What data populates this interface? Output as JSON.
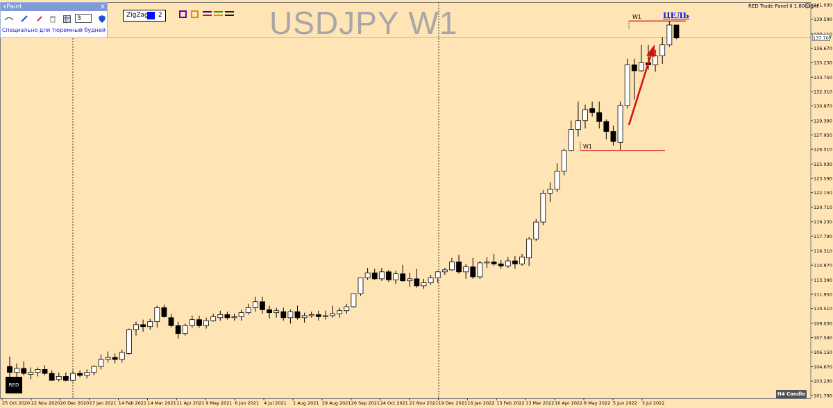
{
  "window": {
    "symbol_title": "USDJPY W1",
    "panel_label": "RED Trade Panel II 1.80 Light"
  },
  "xpaint": {
    "title": "xPaint",
    "close_label": "x",
    "line_width": "3",
    "subtitle": "Специально для тюремный будней"
  },
  "zigzag": {
    "label": "ZigZag",
    "depth": "2",
    "color": "#0011ff"
  },
  "annotations": {
    "target_label": "ЦЕЛЬ",
    "high_label": "W1",
    "low_label": "W1",
    "arrow_color": "#d91010",
    "level_line_color": "#d91010"
  },
  "bottom": {
    "corner_label": "RED",
    "timeframe_badge": "H4 Candle"
  },
  "current_price": "137.707",
  "colors": {
    "background": "#ffe4b5",
    "bull": "#ffffff",
    "bear": "#000000"
  },
  "chart_data": {
    "type": "candlestick",
    "title": "USDJPY W1",
    "y_ticks": [
      "141.030",
      "139.590",
      "138.110",
      "136.670",
      "135.230",
      "133.750",
      "132.310",
      "130.870",
      "129.390",
      "127.950",
      "126.510",
      "125.030",
      "123.590",
      "122.150",
      "120.710",
      "119.230",
      "117.790",
      "116.310",
      "114.870",
      "113.390",
      "111.950",
      "110.510",
      "109.030",
      "107.590",
      "106.150",
      "104.670",
      "103.230",
      "101.790"
    ],
    "x_ticks": [
      "25 Oct 2020",
      "22 Nov 2020",
      "20 Dec 2020",
      "17 Jan 2021",
      "14 Feb 2021",
      "14 Mar 2021",
      "11 Apr 2021",
      "9 May 2021",
      "6 Jun 2021",
      "4 Jul 2021",
      "1 Aug 2021",
      "29 Aug 2021",
      "26 Sep 2021",
      "24 Oct 2021",
      "21 Nov 2021",
      "19 Dec 2021",
      "16 Jan 2022",
      "13 Feb 2022",
      "13 Mar 2022",
      "10 Apr 2022",
      "8 May 2022",
      "5 Jun 2022",
      "3 Jul 2022"
    ],
    "ylim": [
      101.5,
      141.3
    ],
    "candles_ohlc": [
      [
        104.7,
        105.7,
        103.4,
        104.1
      ],
      [
        104.1,
        105.0,
        103.6,
        104.5
      ],
      [
        104.5,
        105.2,
        103.8,
        104.0
      ],
      [
        103.9,
        104.6,
        103.4,
        104.1
      ],
      [
        104.1,
        104.6,
        103.7,
        104.4
      ],
      [
        104.4,
        104.8,
        103.8,
        104.0
      ],
      [
        104.0,
        104.3,
        103.3,
        103.3
      ],
      [
        103.4,
        104.1,
        103.2,
        103.7
      ],
      [
        103.7,
        104.1,
        103.2,
        103.3
      ],
      [
        103.3,
        104.3,
        103.2,
        104.0
      ],
      [
        104.0,
        104.3,
        103.6,
        103.8
      ],
      [
        103.8,
        104.4,
        103.5,
        104.1
      ],
      [
        104.1,
        104.8,
        103.8,
        104.7
      ],
      [
        104.7,
        105.9,
        104.4,
        105.4
      ],
      [
        105.4,
        106.2,
        105.1,
        105.6
      ],
      [
        105.6,
        106.0,
        105.0,
        105.4
      ],
      [
        105.4,
        106.4,
        105.1,
        106.1
      ],
      [
        106.0,
        108.5,
        105.9,
        108.4
      ],
      [
        108.4,
        109.2,
        107.8,
        108.9
      ],
      [
        108.9,
        109.4,
        108.2,
        108.7
      ],
      [
        108.7,
        109.5,
        108.4,
        109.2
      ],
      [
        109.2,
        110.8,
        108.6,
        110.6
      ],
      [
        110.6,
        110.9,
        109.6,
        109.7
      ],
      [
        109.6,
        110.0,
        108.6,
        108.8
      ],
      [
        108.8,
        109.2,
        107.5,
        108.0
      ],
      [
        108.0,
        109.0,
        107.8,
        108.8
      ],
      [
        108.8,
        109.8,
        108.6,
        109.4
      ],
      [
        109.4,
        109.8,
        108.6,
        108.8
      ],
      [
        108.8,
        109.6,
        108.5,
        109.3
      ],
      [
        109.3,
        110.0,
        109.2,
        109.7
      ],
      [
        109.6,
        110.3,
        109.3,
        109.9
      ],
      [
        109.9,
        110.2,
        109.4,
        109.6
      ],
      [
        109.6,
        110.0,
        109.3,
        109.7
      ],
      [
        109.7,
        110.4,
        109.3,
        110.1
      ],
      [
        110.1,
        111.0,
        109.9,
        110.6
      ],
      [
        110.6,
        111.7,
        110.2,
        111.2
      ],
      [
        111.2,
        111.7,
        110.0,
        110.4
      ],
      [
        110.4,
        110.8,
        109.5,
        110.1
      ],
      [
        110.1,
        110.6,
        109.6,
        110.3
      ],
      [
        110.2,
        110.6,
        109.3,
        109.6
      ],
      [
        109.6,
        110.4,
        109.0,
        110.2
      ],
      [
        110.2,
        110.8,
        109.4,
        109.6
      ],
      [
        109.6,
        110.1,
        109.1,
        109.8
      ],
      [
        109.8,
        110.2,
        109.6,
        109.9
      ],
      [
        109.9,
        110.3,
        109.3,
        109.7
      ],
      [
        109.7,
        110.3,
        109.4,
        109.8
      ],
      [
        109.8,
        110.8,
        109.6,
        110.0
      ],
      [
        110.0,
        110.6,
        109.6,
        110.3
      ],
      [
        110.3,
        111.0,
        110.0,
        110.7
      ],
      [
        110.7,
        112.0,
        110.6,
        112.0
      ],
      [
        112.0,
        113.6,
        111.8,
        113.6
      ],
      [
        113.6,
        114.6,
        113.4,
        114.1
      ],
      [
        114.1,
        114.5,
        113.4,
        113.5
      ],
      [
        113.5,
        114.6,
        113.3,
        114.2
      ],
      [
        114.2,
        114.4,
        113.2,
        113.4
      ],
      [
        113.4,
        114.3,
        113.0,
        114.0
      ],
      [
        114.0,
        114.9,
        113.2,
        113.3
      ],
      [
        113.3,
        114.1,
        112.7,
        113.5
      ],
      [
        113.5,
        114.5,
        112.6,
        112.8
      ],
      [
        112.8,
        113.5,
        112.5,
        113.1
      ],
      [
        113.1,
        113.9,
        112.9,
        113.6
      ],
      [
        113.6,
        114.3,
        113.1,
        114.2
      ],
      [
        114.2,
        114.6,
        113.9,
        114.4
      ],
      [
        114.4,
        115.6,
        114.3,
        115.2
      ],
      [
        115.2,
        115.9,
        114.0,
        114.2
      ],
      [
        114.2,
        115.0,
        113.5,
        114.7
      ],
      [
        114.7,
        115.6,
        113.5,
        113.7
      ],
      [
        113.7,
        115.3,
        113.5,
        115.1
      ],
      [
        115.1,
        115.7,
        114.6,
        115.2
      ],
      [
        115.2,
        116.0,
        114.8,
        115.0
      ],
      [
        115.0,
        115.4,
        114.5,
        114.8
      ],
      [
        114.8,
        115.7,
        114.6,
        115.3
      ],
      [
        115.3,
        115.8,
        114.5,
        115.0
      ],
      [
        115.0,
        116.0,
        114.8,
        115.7
      ],
      [
        115.6,
        117.7,
        114.8,
        117.5
      ],
      [
        117.5,
        119.5,
        117.3,
        119.2
      ],
      [
        119.2,
        122.4,
        118.9,
        122.1
      ],
      [
        122.1,
        123.2,
        121.2,
        122.5
      ],
      [
        122.5,
        125.1,
        122.2,
        124.3
      ],
      [
        124.3,
        126.6,
        123.9,
        126.4
      ],
      [
        126.4,
        129.4,
        126.3,
        128.5
      ],
      [
        128.5,
        131.3,
        127.8,
        129.4
      ],
      [
        129.4,
        131.0,
        128.6,
        130.5
      ],
      [
        130.6,
        131.3,
        129.8,
        130.2
      ],
      [
        130.2,
        131.3,
        128.6,
        129.3
      ],
      [
        129.3,
        129.5,
        127.5,
        128.3
      ],
      [
        128.3,
        128.9,
        126.9,
        127.3
      ],
      [
        127.2,
        131.3,
        126.4,
        130.9
      ],
      [
        130.9,
        135.6,
        130.6,
        135.0
      ],
      [
        135.0,
        135.6,
        131.5,
        134.4
      ],
      [
        134.4,
        137.0,
        134.3,
        135.2
      ],
      [
        135.2,
        137.0,
        134.5,
        135.0
      ],
      [
        135.0,
        136.5,
        134.3,
        135.9
      ],
      [
        135.9,
        137.8,
        135.1,
        137.0
      ],
      [
        137.0,
        139.4,
        136.8,
        139.0
      ],
      [
        139.0,
        139.0,
        137.6,
        137.7
      ]
    ],
    "levels": {
      "swing_high": 139.4,
      "swing_low": 126.4
    }
  }
}
